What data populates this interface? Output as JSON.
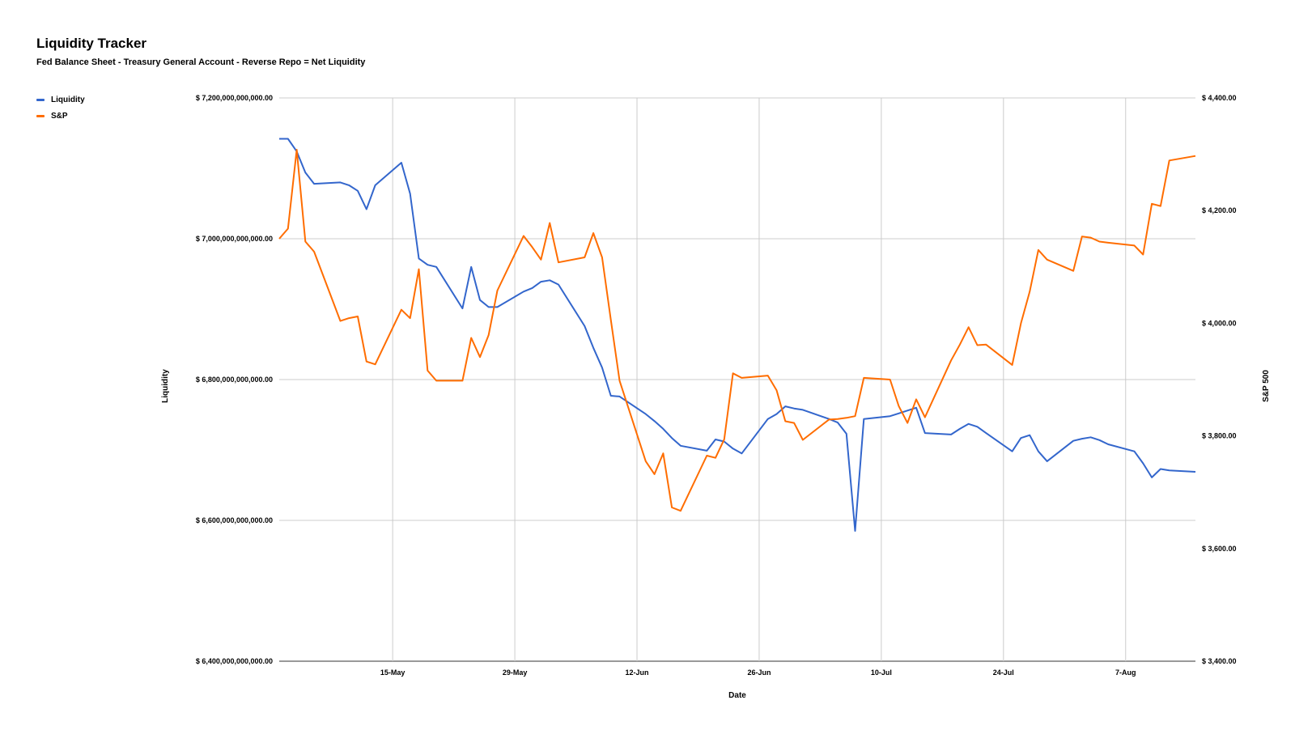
{
  "chart_data": {
    "type": "line",
    "title": "Liquidity Tracker",
    "subtitle": "Fed Balance Sheet - Treasury General Account - Reverse Repo = Net Liquidity",
    "xlabel": "Date",
    "ylabel_left": "Liquidity",
    "ylabel_right": "S&P 500",
    "x_ticks": [
      "15-May",
      "29-May",
      "12-Jun",
      "26-Jun",
      "10-Jul",
      "24-Jul",
      "7-Aug"
    ],
    "left_axis": {
      "ylim": [
        6400000000000,
        7200000000000
      ],
      "ticks": [
        "$ 6,400,000,000,000.00",
        "$ 6,600,000,000,000.00",
        "$ 6,800,000,000,000.00",
        "$ 7,000,000,000,000.00",
        "$ 7,200,000,000,000.00"
      ]
    },
    "right_axis": {
      "ylim": [
        3400,
        4400
      ],
      "ticks": [
        "$ 3,400.00",
        "$ 3,600.00",
        "$ 3,800.00",
        "$ 4,000.00",
        "$ 4,200.00",
        "$ 4,400.00"
      ]
    },
    "grid": true,
    "legend_position": "top-left",
    "x_dates": [
      "2020-05-02",
      "2020-05-03",
      "2020-05-04",
      "2020-05-05",
      "2020-05-06",
      "2020-05-09",
      "2020-05-10",
      "2020-05-11",
      "2020-05-12",
      "2020-05-13",
      "2020-05-16",
      "2020-05-17",
      "2020-05-18",
      "2020-05-19",
      "2020-05-20",
      "2020-05-23",
      "2020-05-24",
      "2020-05-25",
      "2020-05-26",
      "2020-05-27",
      "2020-05-30",
      "2020-05-31",
      "2020-06-01",
      "2020-06-02",
      "2020-06-03",
      "2020-06-06",
      "2020-06-07",
      "2020-06-08",
      "2020-06-09",
      "2020-06-10",
      "2020-06-13",
      "2020-06-14",
      "2020-06-15",
      "2020-06-16",
      "2020-06-17",
      "2020-06-20",
      "2020-06-21",
      "2020-06-22",
      "2020-06-23",
      "2020-06-24",
      "2020-06-27",
      "2020-06-28",
      "2020-06-29",
      "2020-06-30",
      "2020-07-01",
      "2020-07-04",
      "2020-07-05",
      "2020-07-06",
      "2020-07-07",
      "2020-07-08",
      "2020-07-11",
      "2020-07-12",
      "2020-07-13",
      "2020-07-14",
      "2020-07-15",
      "2020-07-18",
      "2020-07-19",
      "2020-07-20",
      "2020-07-21",
      "2020-07-22",
      "2020-07-25",
      "2020-07-26",
      "2020-07-27",
      "2020-07-28",
      "2020-07-29",
      "2020-08-01",
      "2020-08-02",
      "2020-08-03",
      "2020-08-04",
      "2020-08-05",
      "2020-08-08",
      "2020-08-09",
      "2020-08-10",
      "2020-08-11",
      "2020-08-12",
      "2020-08-15"
    ],
    "series": [
      {
        "name": "Liquidity",
        "color": "#3366cc",
        "axis": "left",
        "values": [
          7142,
          7142,
          7124,
          7094,
          7078,
          7080,
          7076,
          7068,
          7042,
          7076,
          7108,
          7064,
          6972,
          6963,
          6960,
          6901,
          6960,
          6913,
          6903,
          6903,
          6925,
          6930,
          6939,
          6941,
          6935,
          6876,
          6845,
          6817,
          6777,
          6776,
          6751,
          6741,
          6730,
          6717,
          6706,
          6699,
          6715,
          6712,
          6702,
          6695,
          6744,
          6751,
          6762,
          6759,
          6757,
          6744,
          6739,
          6723,
          6585,
          6744,
          6748,
          6752,
          6756,
          6760,
          6724,
          6722,
          6730,
          6737,
          6733,
          6724,
          6698,
          6717,
          6721,
          6698,
          6684,
          6713,
          6716,
          6718,
          6714,
          6708,
          6698,
          6681,
          6661,
          6673,
          6671,
          6669
        ]
      },
      {
        "name": "S&P",
        "color": "#ff6d00",
        "axis": "right",
        "values": [
          4150,
          4168,
          4308,
          4145,
          4127,
          4004,
          4009,
          4012,
          3932,
          3927,
          4024,
          4009,
          4096,
          3916,
          3898,
          3898,
          3974,
          3940,
          3979,
          4058,
          4155,
          4135,
          4113,
          4178,
          4108,
          4117,
          4160,
          4117,
          4006,
          3898,
          3755,
          3732,
          3769,
          3673,
          3667,
          3765,
          3761,
          3794,
          3911,
          3903,
          3907,
          3881,
          3826,
          3823,
          3793,
          3829,
          3830,
          3832,
          3835,
          3903,
          3900,
          3853,
          3823,
          3865,
          3833,
          3934,
          3962,
          3993,
          3961,
          3962,
          3926,
          4000,
          4056,
          4130,
          4113,
          4093,
          4154,
          4152,
          4145,
          4143,
          4138,
          4122,
          4212,
          4208,
          4289,
          4297
        ]
      }
    ]
  }
}
